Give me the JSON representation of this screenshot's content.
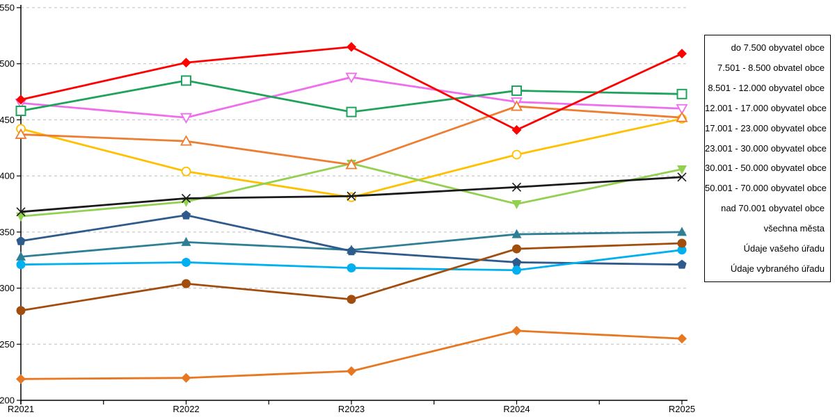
{
  "chart_data": {
    "type": "line",
    "title": "",
    "xlabel": "",
    "ylabel": "",
    "categories": [
      "R2021",
      "R2022",
      "R2023",
      "R2024",
      "R2025"
    ],
    "ylim": [
      200,
      550
    ],
    "ytick_step": 50,
    "grid": "horizontal-dashed",
    "gridline_color": "#bfbfbf",
    "axis_color": "#000000",
    "legend_position": "right-box",
    "series": [
      {
        "name": "do 7.500 obyvatel obce",
        "color": "#fe0000",
        "marker": "diamond-filled",
        "values": [
          468,
          501,
          515,
          441,
          509
        ]
      },
      {
        "name": "7.501 - 8.500 obvatel obce",
        "color": "#ee6eeb",
        "marker": "triangle-down-open",
        "values": [
          465,
          452,
          488,
          466,
          460
        ]
      },
      {
        "name": "8.501 - 12.000 obyvatel obce",
        "color": "#1fa35c",
        "marker": "square-open",
        "values": [
          458,
          485,
          457,
          476,
          473
        ]
      },
      {
        "name": "12.001 - 17.000 obyvatel obce",
        "color": "#ffc000",
        "marker": "circle-open",
        "values": [
          442,
          404,
          381,
          419,
          451
        ]
      },
      {
        "name": "17.001 - 23.000 obyvatel obce",
        "color": "#ed7d31",
        "marker": "triangle-up-open",
        "values": [
          437,
          431,
          410,
          462,
          452
        ]
      },
      {
        "name": "23.001 - 30.000 obyvatel obce",
        "color": "#1a1a1a",
        "marker": "x-cross",
        "values": [
          368,
          380,
          382,
          390,
          399
        ]
      },
      {
        "name": "30.001 - 50.000 obyvatel obce",
        "color": "#92d050",
        "marker": "triangle-down-filled",
        "values": [
          364,
          377,
          411,
          375,
          406
        ]
      },
      {
        "name": "50.001 - 70.000 obyvatel obce",
        "color": "#2e5b8c",
        "marker": "pentagon-filled",
        "values": [
          342,
          365,
          333,
          323,
          321
        ]
      },
      {
        "name": "nad 70.001 obyvatel obce",
        "color": "#2e7f95",
        "marker": "triangle-up-filled",
        "values": [
          328,
          341,
          334,
          348,
          350
        ]
      },
      {
        "name": "všechna města",
        "color": "#00b0f0",
        "marker": "circle-filled",
        "values": [
          321,
          323,
          318,
          316,
          334
        ]
      },
      {
        "name": "Údaje vašeho úřadu",
        "color": "#a14d0e",
        "marker": "circle-filled",
        "values": [
          280,
          304,
          290,
          335,
          340
        ]
      },
      {
        "name": "Údaje vybraného úřadu",
        "color": "#e87722",
        "marker": "diamond-filled",
        "values": [
          219,
          220,
          226,
          262,
          255
        ]
      }
    ],
    "draw_order": [
      1,
      2,
      3,
      6,
      4,
      8,
      7,
      9,
      10,
      11,
      5,
      0
    ]
  }
}
